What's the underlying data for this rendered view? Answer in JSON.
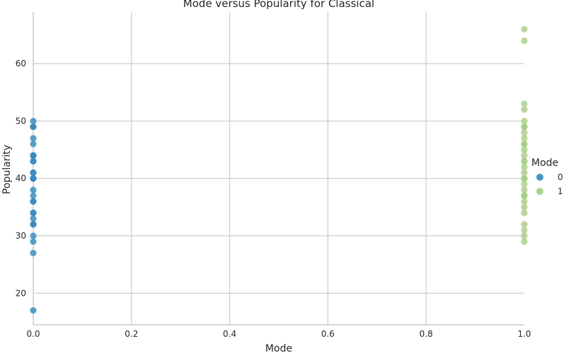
{
  "chart_data": {
    "type": "scatter",
    "title": "Mode versus Popularity for Classical",
    "xlabel": "Mode",
    "ylabel": "Popularity",
    "xlim": [
      0,
      1
    ],
    "ylim": [
      14.5,
      69
    ],
    "xticks": [
      "0.0",
      "0.2",
      "0.4",
      "0.6",
      "0.8",
      "1.0"
    ],
    "yticks": [
      "20",
      "30",
      "40",
      "50",
      "60"
    ],
    "grid": true,
    "legend": {
      "title": "Mode",
      "placement": "right"
    },
    "series": [
      {
        "name": "0",
        "color": "#348ABD",
        "x": [
          0,
          0,
          0,
          0,
          0,
          0,
          0,
          0,
          0,
          0,
          0,
          0,
          0,
          0,
          0,
          0,
          0,
          0,
          0,
          0,
          0,
          0,
          0,
          0,
          0,
          0,
          0,
          0
        ],
        "y": [
          50,
          49,
          47,
          46,
          44,
          43,
          41,
          40,
          38,
          37,
          36,
          34,
          33,
          32,
          30,
          29,
          27,
          17,
          49,
          44,
          43,
          41,
          40,
          36,
          34,
          32,
          40,
          44
        ]
      },
      {
        "name": "1",
        "color": "#A6CC82",
        "x": [
          1,
          1,
          1,
          1,
          1,
          1,
          1,
          1,
          1,
          1,
          1,
          1,
          1,
          1,
          1,
          1,
          1,
          1,
          1,
          1,
          1,
          1,
          1,
          1,
          1,
          1,
          1,
          1,
          1,
          1
        ],
        "y": [
          66,
          64,
          53,
          52,
          50,
          49,
          48,
          47,
          46,
          45,
          44,
          43,
          42,
          41,
          40,
          39,
          38,
          37,
          36,
          35,
          34,
          32,
          31,
          30,
          29,
          49,
          46,
          43,
          40,
          37
        ]
      }
    ]
  }
}
